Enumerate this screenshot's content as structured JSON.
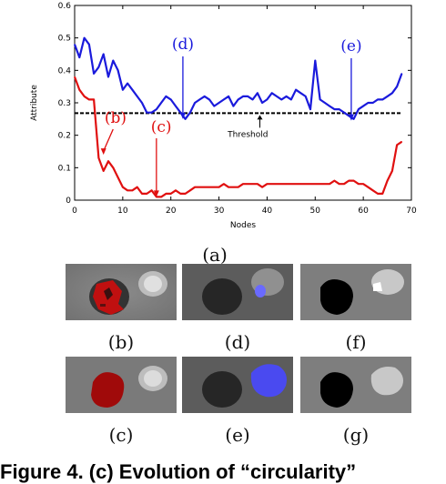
{
  "chart_data": {
    "type": "line",
    "xlabel": "Nodes",
    "ylabel": "Attribute",
    "xlim": [
      0,
      70
    ],
    "ylim": [
      0,
      0.6
    ],
    "x_ticks": [
      "0",
      "10",
      "20",
      "30",
      "40",
      "50",
      "60",
      "70"
    ],
    "y_ticks": [
      "0",
      "0.1",
      "0.2",
      "0.3",
      "0.4",
      "0.5",
      "0.6"
    ],
    "grid": false,
    "threshold": {
      "label": "Threshold",
      "value": 0.268,
      "color": "#000000"
    },
    "series": [
      {
        "color": "#1a1adc",
        "x": [
          0,
          1,
          2,
          3,
          4,
          5,
          6,
          7,
          8,
          9,
          10,
          11,
          12,
          13,
          14,
          15,
          16,
          17,
          18,
          19,
          20,
          21,
          22,
          23,
          24,
          25,
          26,
          27,
          28,
          29,
          30,
          31,
          32,
          33,
          34,
          35,
          36,
          37,
          38,
          39,
          40,
          41,
          42,
          43,
          44,
          45,
          46,
          47,
          48,
          49,
          50,
          51,
          52,
          53,
          54,
          55,
          56,
          57,
          58,
          59,
          60,
          61,
          62,
          63,
          64,
          65,
          66,
          67,
          68
        ],
        "y": [
          0.48,
          0.44,
          0.5,
          0.48,
          0.39,
          0.41,
          0.45,
          0.38,
          0.43,
          0.4,
          0.34,
          0.36,
          0.34,
          0.32,
          0.3,
          0.27,
          0.27,
          0.28,
          0.3,
          0.32,
          0.31,
          0.29,
          0.27,
          0.25,
          0.27,
          0.3,
          0.31,
          0.32,
          0.31,
          0.29,
          0.3,
          0.31,
          0.32,
          0.29,
          0.31,
          0.32,
          0.32,
          0.31,
          0.33,
          0.3,
          0.31,
          0.33,
          0.32,
          0.31,
          0.32,
          0.31,
          0.34,
          0.33,
          0.32,
          0.28,
          0.43,
          0.31,
          0.3,
          0.29,
          0.28,
          0.28,
          0.27,
          0.26,
          0.25,
          0.28,
          0.29,
          0.3,
          0.3,
          0.31,
          0.31,
          0.32,
          0.33,
          0.35,
          0.39
        ]
      },
      {
        "color": "#e01010",
        "x": [
          0,
          1,
          2,
          3,
          4,
          5,
          6,
          7,
          8,
          9,
          10,
          11,
          12,
          13,
          14,
          15,
          16,
          17,
          18,
          19,
          20,
          21,
          22,
          23,
          24,
          25,
          26,
          27,
          28,
          29,
          30,
          31,
          32,
          33,
          34,
          35,
          36,
          37,
          38,
          39,
          40,
          41,
          42,
          43,
          44,
          45,
          46,
          47,
          48,
          49,
          50,
          51,
          52,
          53,
          54,
          55,
          56,
          57,
          58,
          59,
          60,
          61,
          62,
          63,
          64,
          65,
          66,
          67,
          68
        ],
        "y": [
          0.38,
          0.34,
          0.32,
          0.31,
          0.31,
          0.13,
          0.09,
          0.12,
          0.1,
          0.07,
          0.04,
          0.03,
          0.03,
          0.04,
          0.02,
          0.02,
          0.03,
          0.01,
          0.01,
          0.02,
          0.02,
          0.03,
          0.02,
          0.02,
          0.03,
          0.04,
          0.04,
          0.04,
          0.04,
          0.04,
          0.04,
          0.05,
          0.04,
          0.04,
          0.04,
          0.05,
          0.05,
          0.05,
          0.05,
          0.04,
          0.05,
          0.05,
          0.05,
          0.05,
          0.05,
          0.05,
          0.05,
          0.05,
          0.05,
          0.05,
          0.05,
          0.05,
          0.05,
          0.05,
          0.06,
          0.05,
          0.05,
          0.06,
          0.06,
          0.05,
          0.05,
          0.04,
          0.03,
          0.02,
          0.02,
          0.06,
          0.09,
          0.17,
          0.18
        ]
      }
    ],
    "annotations": [
      {
        "text": "(b)",
        "x": 6,
        "y": 0.14,
        "color": "#e01010"
      },
      {
        "text": "(c)",
        "x": 17,
        "y": 0.01,
        "color": "#e01010"
      },
      {
        "text": "(d)",
        "x": 22.5,
        "y": 0.25,
        "color": "#1a1adc"
      },
      {
        "text": "(e)",
        "x": 57.5,
        "y": 0.25,
        "color": "#1a1adc"
      }
    ]
  },
  "labels": {
    "a": "(a)",
    "b": "(b)",
    "c": "(c)",
    "d": "(d)",
    "e": "(e)",
    "f": "(f)",
    "g": "(g)"
  },
  "caption": "Figure 4. (c) Evolution of “circularity”"
}
